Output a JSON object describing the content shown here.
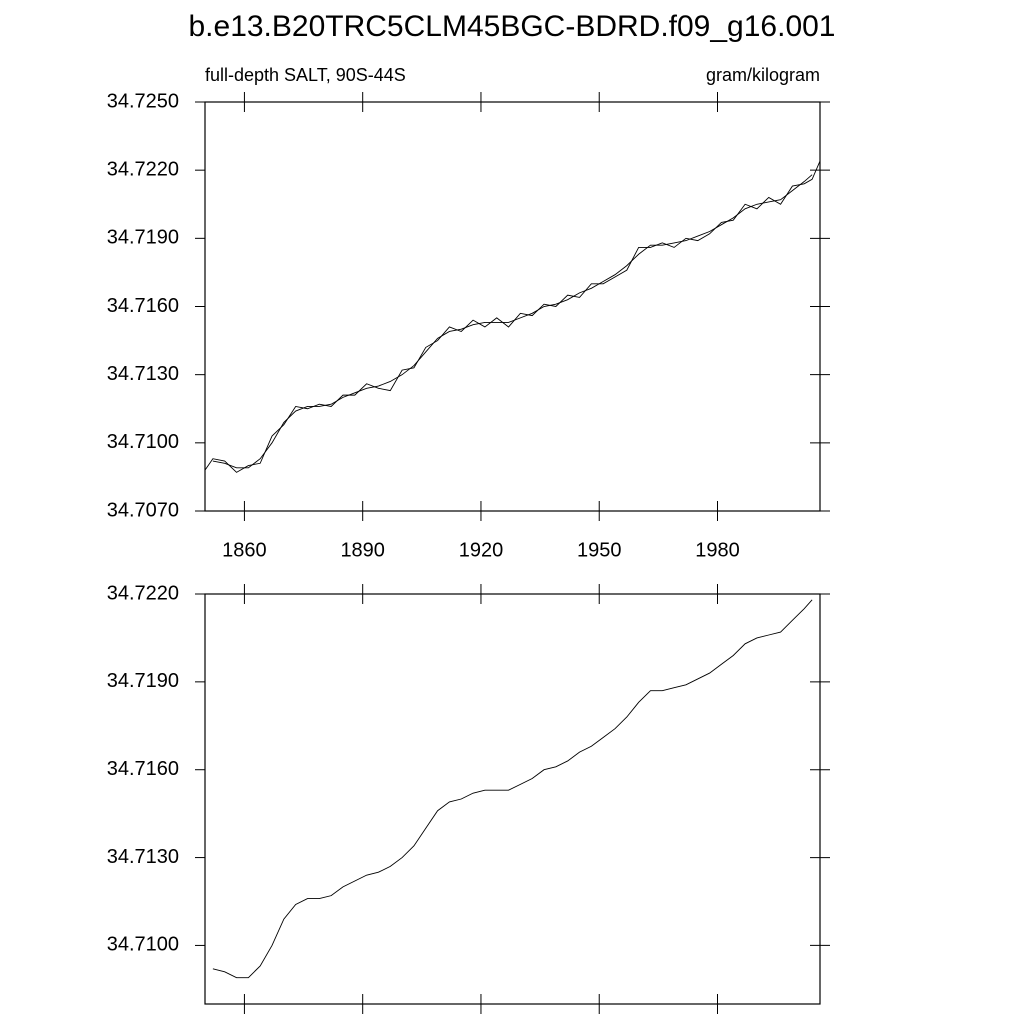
{
  "title": "b.e13.B20TRC5CLM45BGC-BDRD.f09_g16.001",
  "chart_data": [
    {
      "type": "line",
      "left_label": "full-depth SALT, 90S-44S",
      "right_label": "gram/kilogram",
      "x": [
        1850,
        1852,
        1855,
        1858,
        1861,
        1864,
        1867,
        1870,
        1873,
        1876,
        1879,
        1882,
        1885,
        1888,
        1891,
        1894,
        1897,
        1900,
        1903,
        1906,
        1909,
        1912,
        1915,
        1918,
        1921,
        1924,
        1927,
        1930,
        1933,
        1936,
        1939,
        1942,
        1945,
        1948,
        1951,
        1954,
        1957,
        1960,
        1963,
        1966,
        1969,
        1972,
        1975,
        1978,
        1981,
        1984,
        1987,
        1990,
        1993,
        1996,
        1999,
        2002,
        2004,
        2006
      ],
      "series": [
        {
          "color": "#000000",
          "values": [
            34.7088,
            34.7093,
            34.7092,
            34.7087,
            34.709,
            34.7091,
            34.7103,
            34.7108,
            34.7116,
            34.7115,
            34.7117,
            34.7116,
            34.7121,
            34.7121,
            34.7126,
            34.7124,
            34.7123,
            34.7132,
            34.7133,
            34.7142,
            34.7145,
            34.7151,
            34.7149,
            34.7154,
            34.7151,
            34.7155,
            34.7151,
            34.7157,
            34.7156,
            34.7161,
            34.716,
            34.7165,
            34.7164,
            34.717,
            34.717,
            34.7173,
            34.7176,
            34.7186,
            34.7186,
            34.7188,
            34.7186,
            34.719,
            34.7189,
            34.7192,
            34.7197,
            34.7198,
            34.7205,
            34.7203,
            34.7208,
            34.7205,
            34.7213,
            34.7214,
            34.7216,
            34.7224
          ]
        },
        {
          "color": "#000000",
          "values": [
            null,
            34.7092,
            34.7091,
            34.7089,
            34.7089,
            34.7093,
            34.71,
            34.7109,
            34.7114,
            34.7116,
            34.7116,
            34.7117,
            34.712,
            34.7122,
            34.7124,
            34.7125,
            34.7127,
            34.713,
            34.7134,
            34.714,
            34.7146,
            34.7149,
            34.715,
            34.7152,
            34.7153,
            34.7153,
            34.7153,
            34.7155,
            34.7157,
            34.716,
            34.7161,
            34.7163,
            34.7166,
            34.7168,
            34.7171,
            34.7174,
            34.7178,
            34.7183,
            34.7187,
            34.7187,
            34.7188,
            34.7189,
            34.7191,
            34.7193,
            34.7196,
            34.7199,
            34.7203,
            34.7205,
            34.7206,
            34.7207,
            34.7211,
            34.7215,
            34.7218,
            null
          ]
        }
      ],
      "xlim": [
        1850,
        2006
      ],
      "xticks": [
        1860,
        1890,
        1920,
        1950,
        1980
      ],
      "xtick_labels": true,
      "ylim": [
        34.707,
        34.725
      ],
      "yticks": [
        {
          "value": 34.707,
          "label": "34.7070"
        },
        {
          "value": 34.71,
          "label": "34.7100"
        },
        {
          "value": 34.713,
          "label": "34.7130"
        },
        {
          "value": 34.716,
          "label": "34.7160"
        },
        {
          "value": 34.719,
          "label": "34.7190"
        },
        {
          "value": 34.722,
          "label": "34.7220"
        },
        {
          "value": 34.725,
          "label": "34.7250"
        }
      ]
    },
    {
      "type": "line",
      "x": [
        1852,
        1855,
        1858,
        1861,
        1864,
        1867,
        1870,
        1873,
        1876,
        1879,
        1882,
        1885,
        1888,
        1891,
        1894,
        1897,
        1900,
        1903,
        1906,
        1909,
        1912,
        1915,
        1918,
        1921,
        1924,
        1927,
        1930,
        1933,
        1936,
        1939,
        1942,
        1945,
        1948,
        1951,
        1954,
        1957,
        1960,
        1963,
        1966,
        1969,
        1972,
        1975,
        1978,
        1981,
        1984,
        1987,
        1990,
        1993,
        1996,
        1999,
        2002,
        2004
      ],
      "series": [
        {
          "color": "#000000",
          "values": [
            34.7092,
            34.7091,
            34.7089,
            34.7089,
            34.7093,
            34.71,
            34.7109,
            34.7114,
            34.7116,
            34.7116,
            34.7117,
            34.712,
            34.7122,
            34.7124,
            34.7125,
            34.7127,
            34.713,
            34.7134,
            34.714,
            34.7146,
            34.7149,
            34.715,
            34.7152,
            34.7153,
            34.7153,
            34.7153,
            34.7155,
            34.7157,
            34.716,
            34.7161,
            34.7163,
            34.7166,
            34.7168,
            34.7171,
            34.7174,
            34.7178,
            34.7183,
            34.7187,
            34.7187,
            34.7188,
            34.7189,
            34.7191,
            34.7193,
            34.7196,
            34.7199,
            34.7203,
            34.7205,
            34.7206,
            34.7207,
            34.7211,
            34.7215,
            34.7218
          ]
        }
      ],
      "xlim": [
        1850,
        2006
      ],
      "xticks": [
        1860,
        1890,
        1920,
        1950,
        1980
      ],
      "xtick_labels": false,
      "ylim": [
        34.708,
        34.722
      ],
      "yticks": [
        {
          "value": 34.71,
          "label": "34.7100"
        },
        {
          "value": 34.713,
          "label": "34.7130"
        },
        {
          "value": 34.716,
          "label": "34.7160"
        },
        {
          "value": 34.719,
          "label": "34.7190"
        },
        {
          "value": 34.722,
          "label": "34.7220"
        }
      ]
    }
  ]
}
